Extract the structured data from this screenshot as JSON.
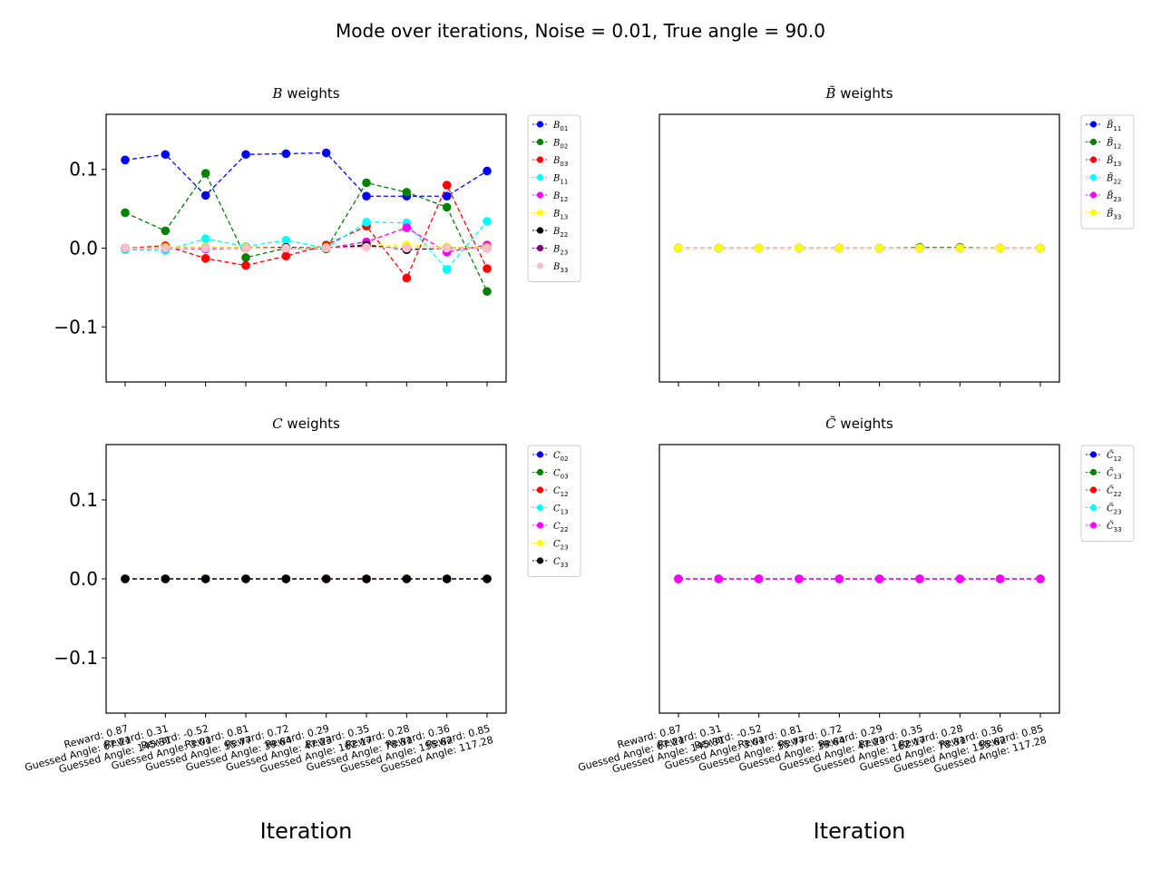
{
  "suptitle": "Mode over iterations, Noise = 0.01, True angle = 90.0",
  "x_tick_labels": [
    "Reward: 0.87\nGuessed Angle: 67.21",
    "Reward: 0.31\nGuessed Angle: 145.31",
    "Reward: -0.52\nGuessed Angle: 3.01",
    "Reward: 0.81\nGuessed Angle: 55.77",
    "Reward: 0.72\nGuessed Angle: 39.64",
    "Reward: 0.29\nGuessed Angle: 47.23",
    "Reward: 0.35\nGuessed Angle: 162.17",
    "Reward: 0.28\nGuessed Angle: 78.31",
    "Reward: 0.36\nGuessed Angle: 155.62",
    "Reward: 0.85\nGuessed Angle: 117.28"
  ],
  "chart_data": [
    {
      "type": "line",
      "title": "B weights",
      "title_math": "B",
      "title_tilde": false,
      "xlabel": "",
      "ylabel": "",
      "x": [
        0,
        1,
        2,
        3,
        4,
        5,
        6,
        7,
        8,
        9
      ],
      "ylim": [
        -0.17,
        0.17
      ],
      "yticks": [
        -0.1,
        0.0,
        0.1
      ],
      "ytick_labels": [
        "−0.1",
        "0.0",
        "0.1"
      ],
      "show_yticks": true,
      "show_xticklabels": false,
      "legend_position": "outside-right",
      "series": [
        {
          "name": "01",
          "color": "#0000ff",
          "values": [
            0.112,
            0.119,
            0.067,
            0.119,
            0.12,
            0.121,
            0.066,
            0.066,
            0.066,
            0.098
          ]
        },
        {
          "name": "02",
          "color": "#008000",
          "values": [
            0.045,
            0.022,
            0.095,
            -0.012,
            0.0,
            -0.001,
            0.083,
            0.071,
            0.052,
            -0.055
          ]
        },
        {
          "name": "03",
          "color": "#ff0000",
          "values": [
            0.0,
            0.003,
            -0.013,
            -0.022,
            -0.01,
            0.004,
            0.028,
            -0.038,
            0.08,
            -0.026
          ]
        },
        {
          "name": "11",
          "color": "#00ffff",
          "values": [
            -0.002,
            -0.003,
            0.012,
            0.002,
            0.01,
            0.0,
            0.033,
            0.032,
            -0.027,
            0.034
          ]
        },
        {
          "name": "12",
          "color": "#ff00ff",
          "values": [
            0.0,
            0.0,
            -0.001,
            0.0,
            0.0,
            0.0,
            0.008,
            0.026,
            -0.005,
            0.004
          ]
        },
        {
          "name": "13",
          "color": "#ffff00",
          "values": [
            0.0,
            0.001,
            0.001,
            0.001,
            0.001,
            0.001,
            0.003,
            0.004,
            0.001,
            0.001
          ]
        },
        {
          "name": "22",
          "color": "#000000",
          "values": [
            0.0,
            0.0,
            0.0,
            0.0,
            0.001,
            0.0,
            0.004,
            -0.002,
            0.0,
            0.0
          ]
        },
        {
          "name": "23",
          "color": "#800080",
          "values": [
            0.0,
            0.0,
            0.0,
            0.0,
            0.0,
            0.0,
            0.002,
            0.0,
            0.0,
            0.0
          ]
        },
        {
          "name": "33",
          "color": "#ffc0cb",
          "values": [
            0.0,
            0.0,
            0.0,
            0.0,
            0.0,
            0.0,
            0.001,
            0.0,
            0.0,
            0.0
          ]
        }
      ]
    },
    {
      "type": "line",
      "title": "B weights",
      "title_math": "B",
      "title_tilde": true,
      "xlabel": "",
      "ylabel": "",
      "x": [
        0,
        1,
        2,
        3,
        4,
        5,
        6,
        7,
        8,
        9
      ],
      "ylim": [
        -0.17,
        0.17
      ],
      "yticks": [],
      "ytick_labels": [],
      "show_yticks": false,
      "show_xticklabels": false,
      "legend_position": "outside-right",
      "series": [
        {
          "name": "11",
          "color": "#0000ff",
          "values": [
            0,
            0,
            0,
            0,
            0,
            0,
            0,
            0,
            0,
            0
          ]
        },
        {
          "name": "12",
          "color": "#008000",
          "values": [
            0,
            0,
            0,
            0,
            0,
            0,
            0.001,
            0.001,
            0,
            0
          ]
        },
        {
          "name": "13",
          "color": "#ff0000",
          "values": [
            0,
            0,
            0,
            0,
            0,
            0,
            0,
            0,
            0,
            0
          ]
        },
        {
          "name": "22",
          "color": "#00ffff",
          "values": [
            0,
            0,
            0,
            0,
            0,
            0,
            0,
            0,
            0,
            0
          ]
        },
        {
          "name": "23",
          "color": "#ff00ff",
          "values": [
            0,
            0,
            0,
            0,
            0,
            0,
            0,
            0,
            0,
            0
          ]
        },
        {
          "name": "33",
          "color": "#ffff00",
          "values": [
            0,
            0,
            0,
            0,
            0,
            0,
            0,
            0,
            0,
            0
          ]
        }
      ]
    },
    {
      "type": "line",
      "title": "C weights",
      "title_math": "C",
      "title_tilde": false,
      "xlabel": "Iteration",
      "ylabel": "",
      "x": [
        0,
        1,
        2,
        3,
        4,
        5,
        6,
        7,
        8,
        9
      ],
      "ylim": [
        -0.17,
        0.17
      ],
      "yticks": [
        -0.1,
        0.0,
        0.1
      ],
      "ytick_labels": [
        "−0.1",
        "0.0",
        "0.1"
      ],
      "show_yticks": true,
      "show_xticklabels": true,
      "legend_position": "outside-right",
      "series": [
        {
          "name": "02",
          "color": "#0000ff",
          "values": [
            0,
            0,
            0,
            0,
            0,
            0,
            0,
            0,
            0,
            0
          ]
        },
        {
          "name": "03",
          "color": "#008000",
          "values": [
            0,
            0,
            0,
            0,
            0,
            0,
            0,
            0,
            0,
            0
          ]
        },
        {
          "name": "12",
          "color": "#ff0000",
          "values": [
            0,
            0,
            0,
            0,
            0,
            0,
            0,
            0,
            0,
            0
          ]
        },
        {
          "name": "13",
          "color": "#00ffff",
          "values": [
            0,
            0,
            0,
            0,
            0,
            0,
            0,
            0,
            0,
            0
          ]
        },
        {
          "name": "22",
          "color": "#ff00ff",
          "values": [
            0,
            0,
            0,
            0,
            0,
            0,
            0,
            0,
            0,
            0
          ]
        },
        {
          "name": "23",
          "color": "#ffff00",
          "values": [
            0,
            0,
            0,
            0,
            0,
            0,
            0,
            0,
            0,
            0
          ]
        },
        {
          "name": "33",
          "color": "#000000",
          "values": [
            0,
            0,
            0,
            0,
            0,
            0,
            0,
            0,
            0,
            0
          ]
        }
      ]
    },
    {
      "type": "line",
      "title": "C weights",
      "title_math": "C",
      "title_tilde": true,
      "xlabel": "Iteration",
      "ylabel": "",
      "x": [
        0,
        1,
        2,
        3,
        4,
        5,
        6,
        7,
        8,
        9
      ],
      "ylim": [
        -0.17,
        0.17
      ],
      "yticks": [],
      "ytick_labels": [],
      "show_yticks": false,
      "show_xticklabels": true,
      "legend_position": "outside-right",
      "series": [
        {
          "name": "12",
          "color": "#0000ff",
          "values": [
            0,
            0,
            0,
            0,
            0,
            0,
            0,
            0,
            0,
            0
          ]
        },
        {
          "name": "13",
          "color": "#008000",
          "values": [
            0,
            0,
            0,
            0,
            0,
            0,
            0,
            0,
            0,
            0
          ]
        },
        {
          "name": "22",
          "color": "#ff0000",
          "values": [
            0,
            0,
            0,
            0,
            0,
            0,
            0,
            0,
            0,
            0
          ]
        },
        {
          "name": "23",
          "color": "#00ffff",
          "values": [
            0,
            0,
            0,
            0,
            0,
            0,
            0,
            0,
            0,
            0
          ]
        },
        {
          "name": "33",
          "color": "#ff00ff",
          "values": [
            0,
            0,
            0,
            0,
            0,
            0,
            0,
            0,
            0,
            0
          ]
        }
      ]
    }
  ]
}
